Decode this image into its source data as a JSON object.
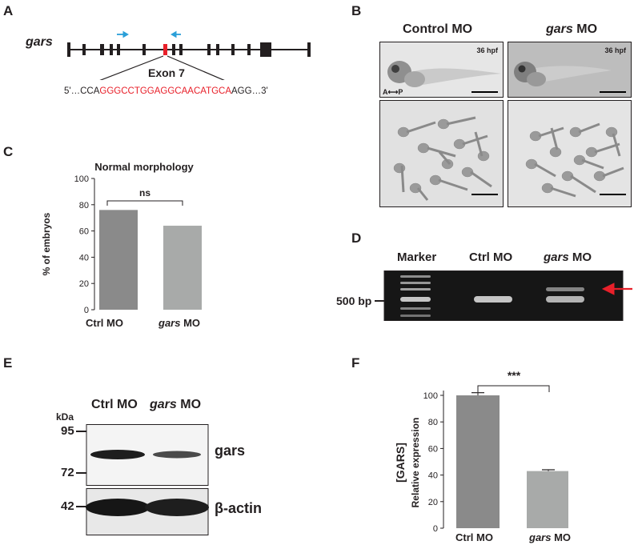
{
  "panel_labels": {
    "a": "A",
    "b": "B",
    "c": "C",
    "d": "D",
    "e": "E",
    "f": "F"
  },
  "panel_a": {
    "gene": "gars",
    "exon_label": "Exon 7",
    "seq_prefix": "5'…CCA",
    "seq_target": "GGGCCTGGAGGCAACATGCA",
    "seq_suffix": "AGG…3'",
    "colors": {
      "exon_target": "#e8202a",
      "primer_arrows": "#2a9fd8",
      "line": "#231f20"
    }
  },
  "panel_b": {
    "col1_label": "Control MO",
    "col2_prefix": "gars",
    "col2_suffix": " MO",
    "stage_label": "36 hpf",
    "axis_label": "A⟷P"
  },
  "panel_c": {
    "title": "Normal morphology",
    "significance": "ns",
    "yaxis_label": "% of embryos",
    "yticks": [
      "0",
      "20",
      "40",
      "60",
      "80",
      "100"
    ],
    "cat1": "Ctrl MO",
    "cat2_prefix": "gars",
    "cat2_suffix": " MO"
  },
  "panel_d": {
    "lane1": "Marker",
    "lane2": "Ctrl MO",
    "lane3_prefix": "gars",
    "lane3_suffix": " MO",
    "size_label": "500 bp",
    "arrow_color": "#e8202a"
  },
  "panel_e": {
    "lane1": "Ctrl MO",
    "lane2_prefix": "gars",
    "lane2_suffix": " MO",
    "kda_label": "kDa",
    "mw_95": "95",
    "mw_72": "72",
    "mw_42": "42",
    "protein1": "gars",
    "protein2": "β-actin"
  },
  "panel_f": {
    "significance": "***",
    "ylabel_line1": "[GARS]",
    "ylabel_line2": "Relative expression",
    "yticks": [
      "0",
      "20",
      "40",
      "60",
      "80",
      "100"
    ],
    "cat1": "Ctrl MO",
    "cat2_prefix": "gars",
    "cat2_suffix": " MO"
  },
  "chart_data": [
    {
      "type": "bar",
      "title": "Normal morphology",
      "categories": [
        "Ctrl MO",
        "gars MO"
      ],
      "values": [
        76,
        64
      ],
      "ylabel": "% of embryos",
      "ylim": [
        0,
        100
      ],
      "yticks": [
        0,
        20,
        40,
        60,
        80,
        100
      ],
      "colors": [
        "#8a8a8a",
        "#a8aaa9"
      ],
      "annotation": "ns"
    },
    {
      "type": "bar",
      "categories": [
        "Ctrl MO",
        "gars MO"
      ],
      "values": [
        100,
        43
      ],
      "errors": [
        2,
        1
      ],
      "ylabel": "[GARS] Relative expression",
      "ylim": [
        0,
        100
      ],
      "yticks": [
        0,
        20,
        40,
        60,
        80,
        100
      ],
      "colors": [
        "#8a8a8a",
        "#a8aaa9"
      ],
      "annotation": "***"
    }
  ]
}
